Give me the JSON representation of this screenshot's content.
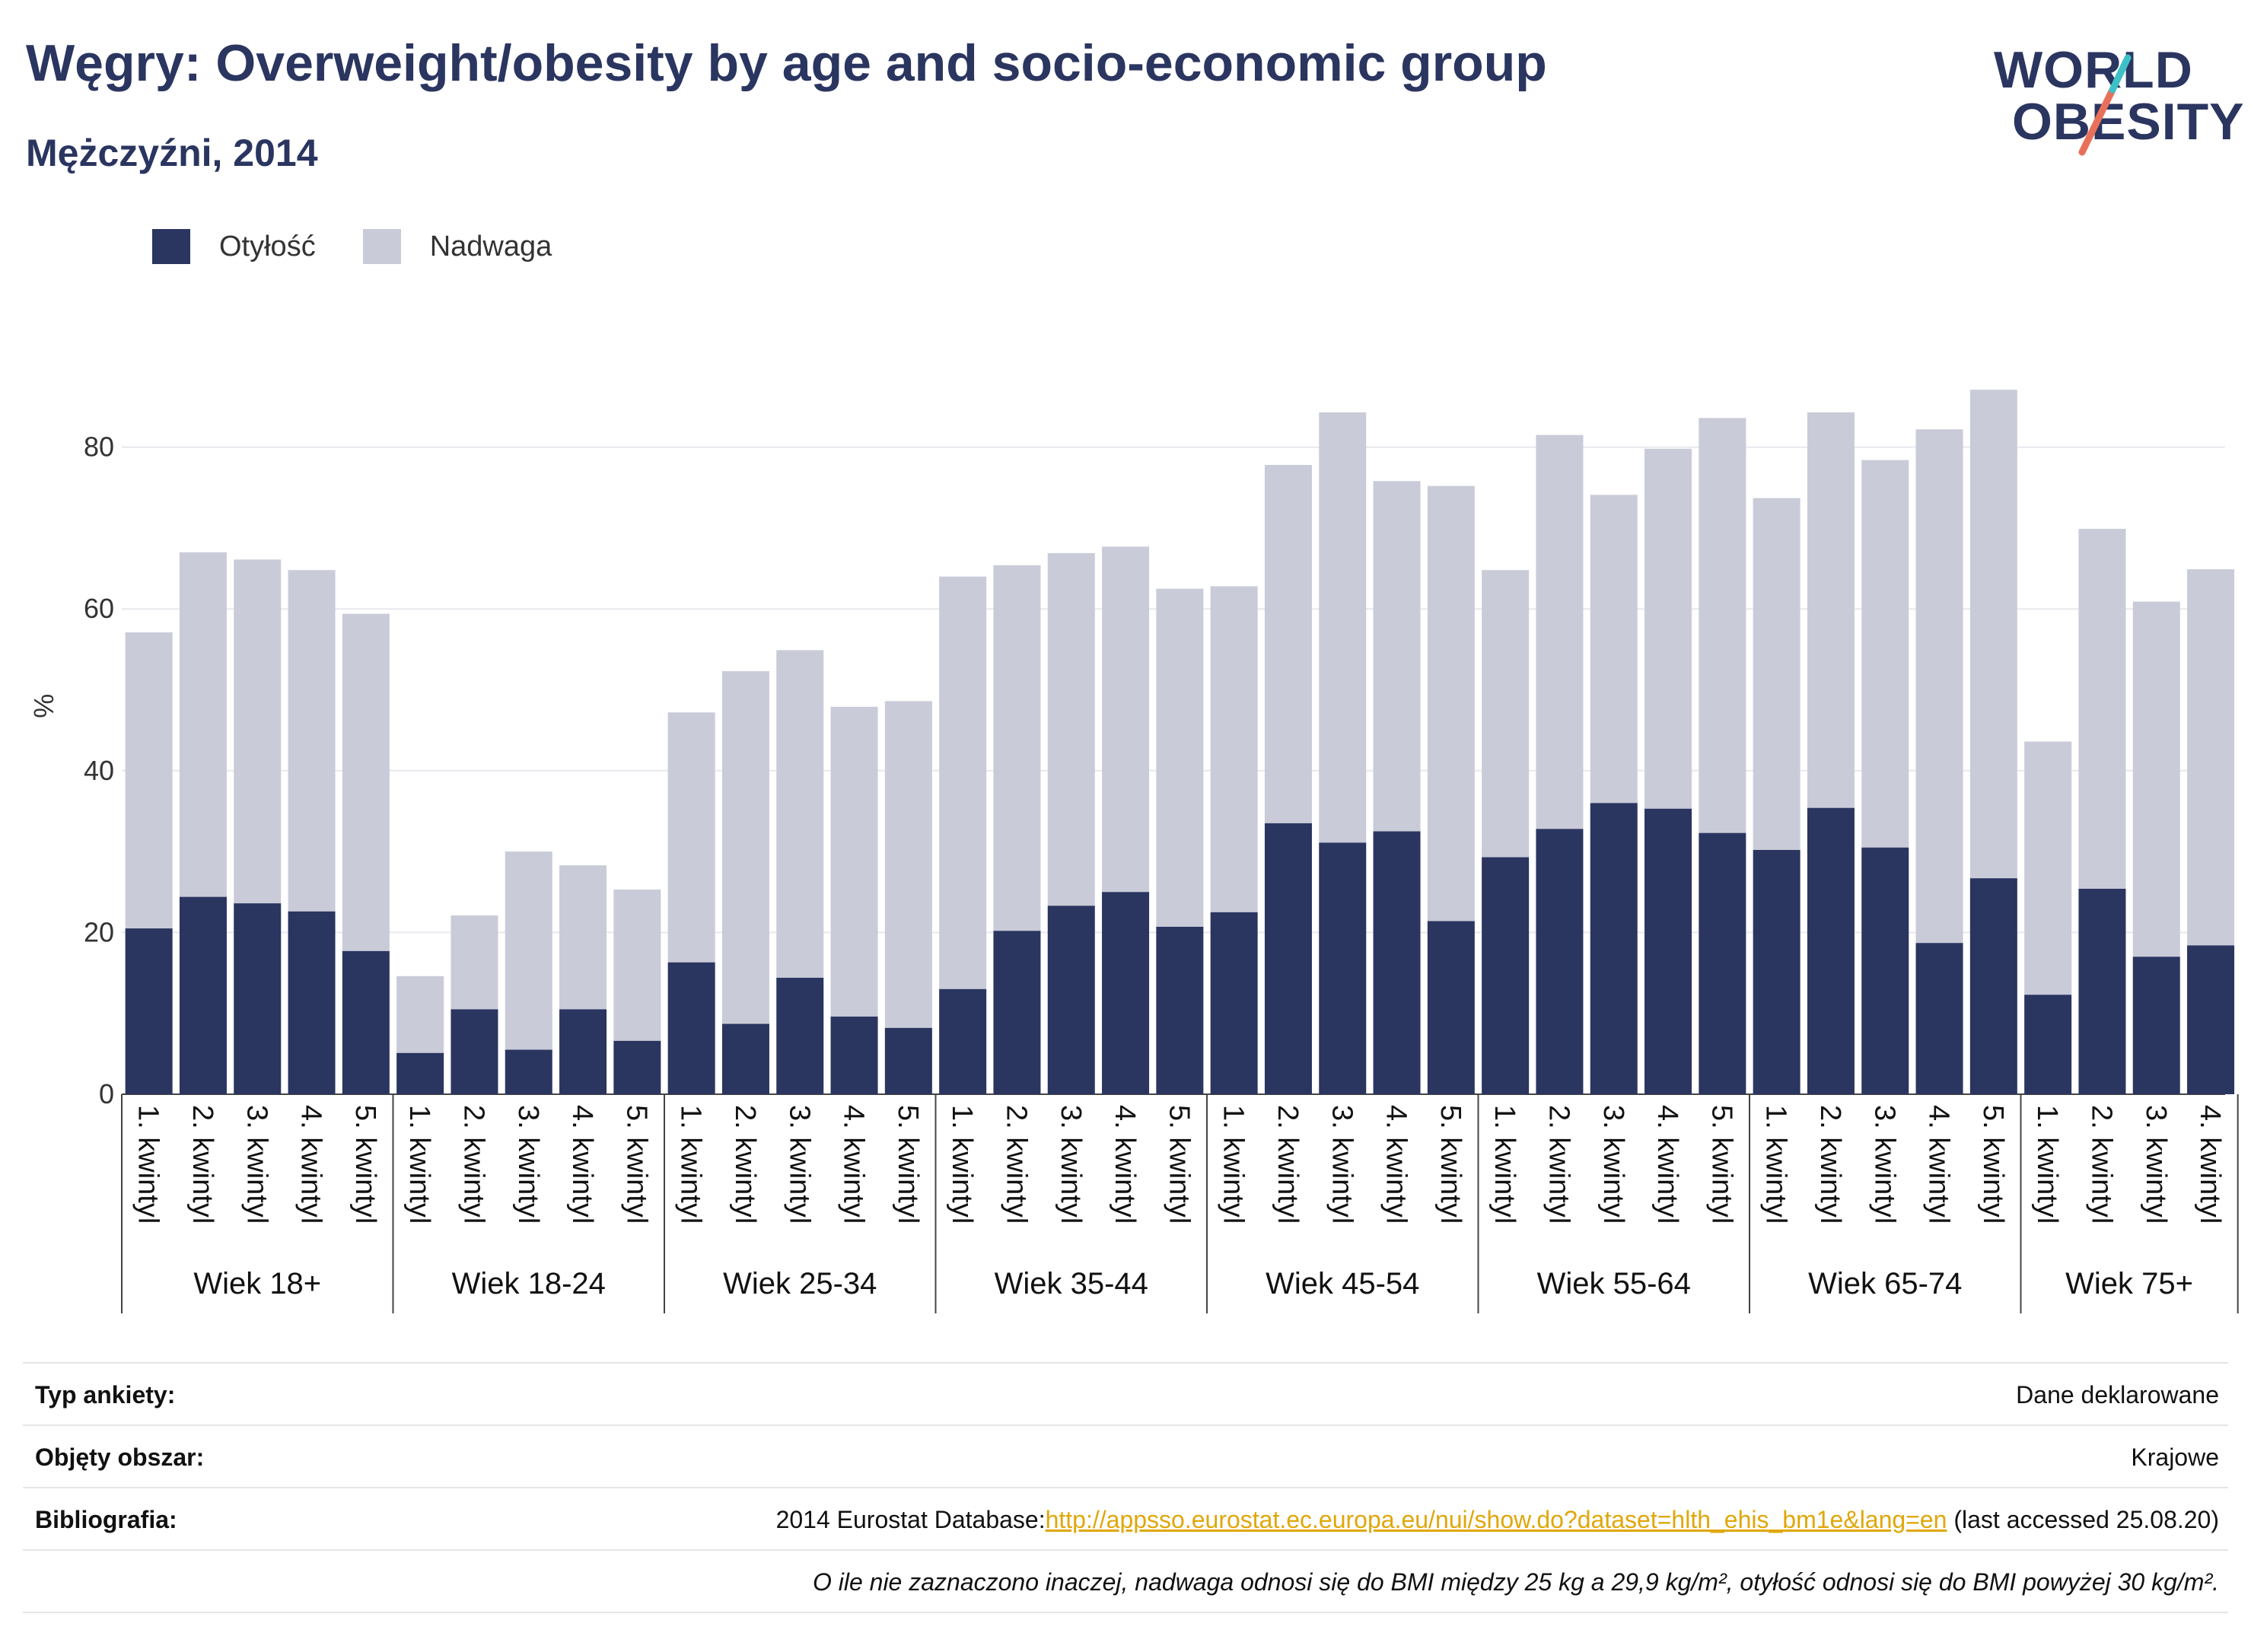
{
  "header": {
    "title": "Węgry: Overweight/obesity by age and socio-economic group",
    "subtitle": "Mężczyźni, 2014"
  },
  "logo": {
    "line1": "WORLD",
    "line2": "OBESITY",
    "accent_color": "#e8705a",
    "accent_color2": "#3ec0c8"
  },
  "legend": [
    {
      "label": "Otyłość",
      "color": "#2a3560"
    },
    {
      "label": "Nadwaga",
      "color": "#c9cbd8"
    }
  ],
  "chart_data": {
    "type": "bar",
    "stacked": true,
    "ylabel": "%",
    "ylim": [
      0,
      90
    ],
    "yticks": [
      0,
      20,
      40,
      60,
      80
    ],
    "grid": true,
    "legend_position": "top-left",
    "groups": [
      {
        "name": "Wiek 18+",
        "categories": [
          "1. kwintyl",
          "2. kwintyl",
          "3. kwintyl",
          "4. kwintyl",
          "5. kwintyl"
        ],
        "obesity": [
          20.5,
          24.4,
          23.6,
          22.6,
          17.7
        ],
        "total": [
          57.1,
          67.0,
          66.1,
          64.8,
          59.4
        ]
      },
      {
        "name": "Wiek 18-24",
        "categories": [
          "1. kwintyl",
          "2. kwintyl",
          "3. kwintyl",
          "4. kwintyl",
          "5. kwintyl"
        ],
        "obesity": [
          5.1,
          10.5,
          5.5,
          10.5,
          6.6
        ],
        "total": [
          14.6,
          22.1,
          30.0,
          28.3,
          25.3
        ]
      },
      {
        "name": "Wiek 25-34",
        "categories": [
          "1. kwintyl",
          "2. kwintyl",
          "3. kwintyl",
          "4. kwintyl",
          "5. kwintyl"
        ],
        "obesity": [
          16.3,
          8.7,
          14.4,
          9.6,
          8.2
        ],
        "total": [
          47.2,
          52.3,
          54.9,
          47.9,
          48.6
        ]
      },
      {
        "name": "Wiek 35-44",
        "categories": [
          "1. kwintyl",
          "2. kwintyl",
          "3. kwintyl",
          "4. kwintyl",
          "5. kwintyl"
        ],
        "obesity": [
          13.0,
          20.2,
          23.3,
          25.0,
          20.7
        ],
        "total": [
          64.0,
          65.4,
          66.9,
          67.7,
          62.5
        ]
      },
      {
        "name": "Wiek 45-54",
        "categories": [
          "1. kwintyl",
          "2. kwintyl",
          "3. kwintyl",
          "4. kwintyl",
          "5. kwintyl"
        ],
        "obesity": [
          22.5,
          33.5,
          31.1,
          32.5,
          21.4
        ],
        "total": [
          62.8,
          77.8,
          84.3,
          75.8,
          75.2
        ]
      },
      {
        "name": "Wiek 55-64",
        "categories": [
          "1. kwintyl",
          "2. kwintyl",
          "3. kwintyl",
          "4. kwintyl",
          "5. kwintyl"
        ],
        "obesity": [
          29.3,
          32.8,
          36.0,
          35.3,
          32.3
        ],
        "total": [
          64.8,
          81.5,
          74.1,
          79.8,
          83.6
        ]
      },
      {
        "name": "Wiek 65-74",
        "categories": [
          "1. kwintyl",
          "2. kwintyl",
          "3. kwintyl",
          "4. kwintyl",
          "5. kwintyl"
        ],
        "obesity": [
          30.2,
          35.4,
          30.5,
          18.7,
          26.7
        ],
        "total": [
          73.7,
          84.3,
          78.4,
          82.2,
          87.1
        ]
      },
      {
        "name": "Wiek 75+",
        "categories": [
          "1. kwintyl",
          "2. kwintyl",
          "3. kwintyl",
          "4. kwintyl"
        ],
        "obesity": [
          12.3,
          25.4,
          17.0,
          18.4
        ],
        "total": [
          43.6,
          69.9,
          60.9,
          64.9
        ]
      }
    ]
  },
  "info": {
    "survey_type_label": "Typ ankiety:",
    "survey_type_value": "Dane deklarowane",
    "area_label": "Objęty obszar:",
    "area_value": "Krajowe",
    "bibliography_label": "Bibliografia:",
    "bibliography_prefix": "2014 Eurostat Database:",
    "bibliography_link": "http://appsso.eurostat.ec.europa.eu/nui/show.do?dataset=hlth_ehis_bm1e&lang=en",
    "bibliography_suffix": " (last accessed 25.08.20)",
    "note": "O ile nie zaznaczono inaczej, nadwaga odnosi się do BMI między 25 kg a 29,9 kg/m², otyłość odnosi się do BMI powyżej 30 kg/m²."
  }
}
